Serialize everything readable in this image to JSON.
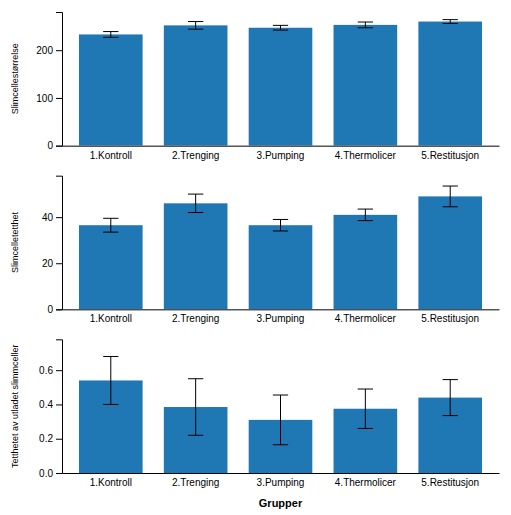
{
  "chart_data": [
    {
      "type": "bar",
      "categories": [
        "1.Kontroll",
        "2.Trenging",
        "3.Pumping",
        "4.Thermolicer",
        "5.Restitusjon"
      ],
      "ylabel": "Slimcellestørrelse",
      "values": [
        233,
        252,
        247,
        253,
        260
      ],
      "errors": [
        6,
        8,
        5,
        6,
        4
      ],
      "ylim": [
        0,
        280
      ],
      "yticks": [
        0,
        100,
        200
      ],
      "grid": false
    },
    {
      "type": "bar",
      "categories": [
        "1.Kontroll",
        "2.Trenging",
        "3.Pumping",
        "4.Thermolicer",
        "5.Restitusjon"
      ],
      "ylabel": "Slimcelletetthet",
      "values": [
        36.5,
        46,
        36.5,
        41,
        49
      ],
      "errors": [
        3,
        4,
        2.5,
        2.5,
        4.5
      ],
      "ylim": [
        0,
        58
      ],
      "yticks": [
        0,
        20,
        40
      ],
      "grid": false
    },
    {
      "type": "bar",
      "categories": [
        "1.Kontroll",
        "2.Trenging",
        "3.Pumping",
        "4.Thermolicer",
        "5.Restitusjon"
      ],
      "ylabel": "Tetthetet av utladet slimmceller",
      "xlabel": "Grupper",
      "values": [
        0.54,
        0.385,
        0.31,
        0.375,
        0.44
      ],
      "errors": [
        0.14,
        0.165,
        0.145,
        0.115,
        0.105
      ],
      "ylim": [
        0,
        0.78
      ],
      "yticks": [
        {
          "value": 0.0,
          "label": "0.0"
        },
        0.2,
        0.4,
        0.6
      ],
      "grid": false
    }
  ]
}
